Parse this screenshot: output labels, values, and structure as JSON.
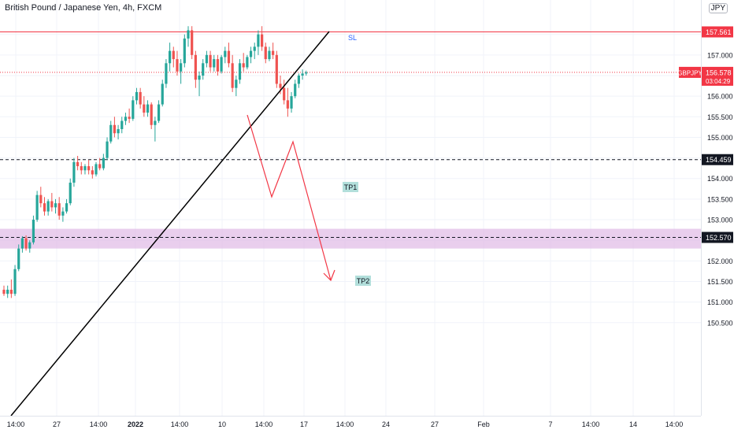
{
  "chart_data": {
    "type": "candlestick",
    "title": "British Pound / Japanese Yen, 4h, FXCM",
    "currency_badge": "JPY",
    "symbol_label": "GBPJPY",
    "countdown": "03:04:29",
    "y_ticks": [
      150.5,
      151.0,
      151.5,
      152.0,
      152.5,
      153.0,
      153.5,
      154.0,
      154.5,
      155.0,
      155.5,
      156.0,
      156.5,
      157.0,
      157.5
    ],
    "x_ticks": [
      "14:00",
      "27",
      "14:00",
      "2022",
      "14:00",
      "10",
      "14:00",
      "17",
      "14:00",
      "24",
      "27",
      "Feb",
      "7",
      "14:00",
      "14",
      "14:00"
    ],
    "price_levels": [
      {
        "name": "SL",
        "price": 157.561,
        "label": "157.561",
        "style": "solid",
        "color": "#f23645"
      },
      {
        "name": "last",
        "price": 156.578,
        "label": "156.578",
        "style": "dotted",
        "color": "#f23645"
      },
      {
        "name": "TP1",
        "price": 154.459,
        "label": "154.459",
        "style": "dashed",
        "color": "#131722"
      },
      {
        "name": "TP2",
        "price": 152.57,
        "label": "152.570",
        "style": "dashed",
        "color": "#131722"
      }
    ],
    "annotations": [
      "SL",
      "TP1",
      "TP2"
    ],
    "zone": {
      "from": 152.3,
      "to": 152.78,
      "color": "#e1bee7"
    },
    "colors": {
      "up": "#26a69a",
      "down": "#ef5350",
      "arrow": "#f23645",
      "trendline": "#000000",
      "sl_label": "#2962ff",
      "tp_label_bg": "#b2dfdb"
    },
    "candles": [
      [
        151.3,
        151.4,
        151.15,
        151.2
      ],
      [
        151.2,
        151.4,
        151.1,
        151.3
      ],
      [
        151.3,
        151.55,
        151.1,
        151.2
      ],
      [
        151.2,
        151.9,
        151.15,
        151.8
      ],
      [
        151.8,
        152.4,
        151.75,
        152.3
      ],
      [
        152.3,
        152.6,
        152.2,
        152.55
      ],
      [
        152.55,
        152.62,
        152.25,
        152.3
      ],
      [
        152.3,
        152.5,
        152.2,
        152.45
      ],
      [
        152.45,
        153.1,
        152.4,
        153.0
      ],
      [
        153.0,
        153.7,
        152.95,
        153.6
      ],
      [
        153.6,
        153.8,
        153.3,
        153.4
      ],
      [
        153.4,
        153.55,
        153.1,
        153.2
      ],
      [
        153.2,
        153.5,
        153.1,
        153.45
      ],
      [
        153.45,
        153.65,
        153.2,
        153.3
      ],
      [
        153.3,
        153.5,
        153.15,
        153.4
      ],
      [
        153.4,
        153.55,
        153.0,
        153.1
      ],
      [
        153.1,
        153.3,
        152.95,
        153.2
      ],
      [
        153.2,
        153.5,
        153.15,
        153.4
      ],
      [
        153.4,
        154.0,
        153.35,
        153.9
      ],
      [
        153.9,
        154.5,
        153.8,
        154.4
      ],
      [
        154.4,
        154.55,
        154.2,
        154.3
      ],
      [
        154.3,
        154.4,
        154.1,
        154.2
      ],
      [
        154.2,
        154.35,
        154.1,
        154.3
      ],
      [
        154.3,
        154.45,
        154.1,
        154.2
      ],
      [
        154.2,
        154.3,
        154.0,
        154.1
      ],
      [
        154.1,
        154.4,
        154.05,
        154.35
      ],
      [
        154.35,
        154.5,
        154.2,
        154.25
      ],
      [
        154.25,
        154.6,
        154.2,
        154.5
      ],
      [
        154.5,
        155.0,
        154.45,
        154.9
      ],
      [
        154.9,
        155.4,
        154.85,
        155.3
      ],
      [
        155.3,
        155.5,
        155.0,
        155.1
      ],
      [
        155.1,
        155.3,
        154.95,
        155.2
      ],
      [
        155.2,
        155.5,
        155.1,
        155.4
      ],
      [
        155.4,
        155.6,
        155.3,
        155.5
      ],
      [
        155.5,
        155.7,
        155.35,
        155.45
      ],
      [
        155.45,
        156.0,
        155.4,
        155.9
      ],
      [
        155.9,
        156.2,
        155.8,
        156.1
      ],
      [
        156.1,
        156.2,
        155.7,
        155.8
      ],
      [
        155.8,
        156.0,
        155.5,
        155.6
      ],
      [
        155.6,
        155.9,
        155.5,
        155.8
      ],
      [
        155.8,
        155.85,
        155.2,
        155.3
      ],
      [
        155.3,
        155.5,
        154.9,
        155.4
      ],
      [
        155.4,
        155.9,
        155.35,
        155.8
      ],
      [
        155.8,
        156.4,
        155.75,
        156.3
      ],
      [
        156.3,
        156.9,
        156.2,
        156.8
      ],
      [
        156.8,
        157.3,
        156.6,
        157.1
      ],
      [
        157.1,
        157.2,
        156.7,
        156.9
      ],
      [
        156.9,
        157.1,
        156.5,
        156.6
      ],
      [
        156.6,
        156.9,
        156.3,
        156.8
      ],
      [
        156.8,
        157.5,
        156.7,
        157.4
      ],
      [
        157.4,
        157.7,
        157.2,
        157.6
      ],
      [
        157.6,
        157.7,
        156.9,
        157.0
      ],
      [
        157.0,
        157.1,
        156.2,
        156.4
      ],
      [
        156.4,
        156.6,
        156.0,
        156.5
      ],
      [
        156.5,
        156.9,
        156.4,
        156.8
      ],
      [
        156.8,
        157.1,
        156.7,
        157.0
      ],
      [
        157.0,
        157.1,
        156.6,
        156.7
      ],
      [
        156.7,
        157.0,
        156.6,
        156.9
      ],
      [
        156.9,
        157.0,
        156.5,
        156.6
      ],
      [
        156.6,
        157.0,
        156.55,
        156.95
      ],
      [
        156.95,
        157.2,
        156.8,
        157.1
      ],
      [
        157.1,
        157.3,
        156.7,
        156.8
      ],
      [
        156.8,
        157.0,
        156.1,
        156.2
      ],
      [
        156.2,
        156.5,
        156.0,
        156.4
      ],
      [
        156.4,
        156.9,
        156.3,
        156.8
      ],
      [
        156.8,
        157.05,
        156.6,
        156.7
      ],
      [
        156.7,
        157.0,
        156.65,
        156.95
      ],
      [
        156.95,
        157.2,
        156.8,
        157.1
      ],
      [
        157.1,
        157.3,
        156.9,
        157.2
      ],
      [
        157.2,
        157.6,
        157.0,
        157.5
      ],
      [
        157.5,
        157.7,
        157.1,
        157.2
      ],
      [
        157.2,
        157.3,
        156.8,
        156.9
      ],
      [
        156.9,
        157.2,
        156.85,
        157.1
      ],
      [
        157.1,
        157.3,
        156.9,
        157.0
      ],
      [
        157.0,
        157.1,
        156.2,
        156.3
      ],
      [
        156.3,
        156.5,
        156.05,
        156.2
      ],
      [
        156.2,
        156.4,
        155.8,
        155.9
      ],
      [
        155.9,
        156.2,
        155.5,
        155.7
      ],
      [
        155.7,
        156.1,
        155.6,
        156.0
      ],
      [
        156.0,
        156.4,
        155.95,
        156.3
      ],
      [
        156.3,
        156.55,
        156.2,
        156.5
      ],
      [
        156.5,
        156.65,
        156.4,
        156.55
      ],
      [
        156.55,
        156.62,
        156.5,
        156.578
      ]
    ]
  }
}
